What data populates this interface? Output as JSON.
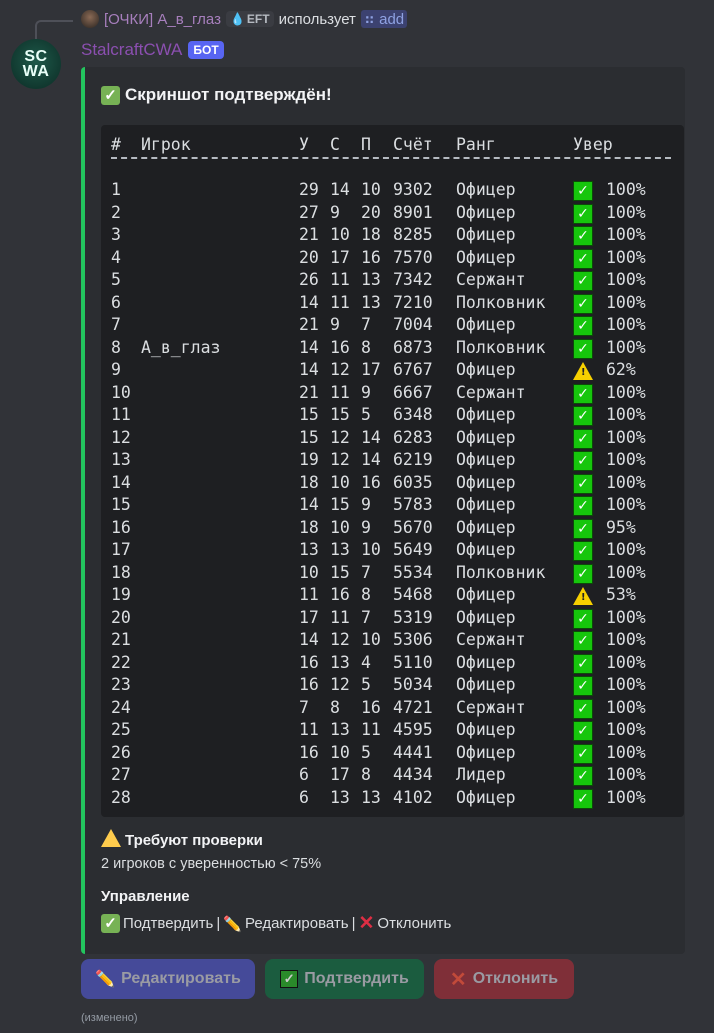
{
  "reply": {
    "user": "[ОЧКИ] А_в_глаз",
    "tag": "EFT",
    "verb": "использует",
    "command": "add"
  },
  "author": {
    "avatar_text_1": "SC",
    "avatar_text_2": "WA",
    "name": "StalcraftCWA",
    "badge": "БОТ"
  },
  "embed": {
    "title": "Скриншот подтверждён!",
    "accent": "#23c55e",
    "headers": [
      "#",
      "Игрок",
      "У",
      "С",
      "П",
      "Счёт",
      "Ранг",
      "Увер"
    ],
    "rows": [
      [
        "1",
        "",
        "29",
        "14",
        "10",
        "9302",
        "Офицер",
        "ok",
        "100%"
      ],
      [
        "2",
        "",
        "27",
        "9",
        "20",
        "8901",
        "Офицер",
        "ok",
        "100%"
      ],
      [
        "3",
        "",
        "21",
        "10",
        "18",
        "8285",
        "Офицер",
        "ok",
        "100%"
      ],
      [
        "4",
        "",
        "20",
        "17",
        "16",
        "7570",
        "Офицер",
        "ok",
        "100%"
      ],
      [
        "5",
        "",
        "26",
        "11",
        "13",
        "7342",
        "Сержант",
        "ok",
        "100%"
      ],
      [
        "6",
        "",
        "14",
        "11",
        "13",
        "7210",
        "Полковник",
        "ok",
        "100%"
      ],
      [
        "7",
        "",
        "21",
        "9",
        "7",
        "7004",
        "Офицер",
        "ok",
        "100%"
      ],
      [
        "8",
        "А_в_глаз",
        "14",
        "16",
        "8",
        "6873",
        "Полковник",
        "ok",
        "100%"
      ],
      [
        "9",
        "",
        "14",
        "12",
        "17",
        "6767",
        "Офицер",
        "warn",
        "62%"
      ],
      [
        "10",
        "",
        "21",
        "11",
        "9",
        "6667",
        "Сержант",
        "ok",
        "100%"
      ],
      [
        "11",
        "",
        "15",
        "15",
        "5",
        "6348",
        "Офицер",
        "ok",
        "100%"
      ],
      [
        "12",
        "",
        "15",
        "12",
        "14",
        "6283",
        "Офицер",
        "ok",
        "100%"
      ],
      [
        "13",
        "",
        "19",
        "12",
        "14",
        "6219",
        "Офицер",
        "ok",
        "100%"
      ],
      [
        "14",
        "",
        "18",
        "10",
        "16",
        "6035",
        "Офицер",
        "ok",
        "100%"
      ],
      [
        "15",
        "",
        "14",
        "15",
        "9",
        "5783",
        "Офицер",
        "ok",
        "100%"
      ],
      [
        "16",
        "",
        "18",
        "10",
        "9",
        "5670",
        "Офицер",
        "ok",
        "95%"
      ],
      [
        "17",
        "",
        "13",
        "13",
        "10",
        "5649",
        "Офицер",
        "ok",
        "100%"
      ],
      [
        "18",
        "",
        "10",
        "15",
        "7",
        "5534",
        "Полковник",
        "ok",
        "100%"
      ],
      [
        "19",
        "",
        "11",
        "16",
        "8",
        "5468",
        "Офицер",
        "warn",
        "53%"
      ],
      [
        "20",
        "",
        "17",
        "11",
        "7",
        "5319",
        "Офицер",
        "ok",
        "100%"
      ],
      [
        "21",
        "",
        "14",
        "12",
        "10",
        "5306",
        "Сержант",
        "ok",
        "100%"
      ],
      [
        "22",
        "",
        "16",
        "13",
        "4",
        "5110",
        "Офицер",
        "ok",
        "100%"
      ],
      [
        "23",
        "",
        "16",
        "12",
        "5",
        "5034",
        "Офицер",
        "ok",
        "100%"
      ],
      [
        "24",
        "",
        "7",
        "8",
        "16",
        "4721",
        "Сержант",
        "ok",
        "100%"
      ],
      [
        "25",
        "",
        "11",
        "13",
        "11",
        "4595",
        "Офицер",
        "ok",
        "100%"
      ],
      [
        "26",
        "",
        "16",
        "10",
        "5",
        "4441",
        "Офицер",
        "ok",
        "100%"
      ],
      [
        "27",
        "",
        "6",
        "17",
        "8",
        "4434",
        "Лидер",
        "ok",
        "100%"
      ],
      [
        "28",
        "",
        "6",
        "13",
        "13",
        "4102",
        "Офицер",
        "ok",
        "100%"
      ]
    ],
    "review_title": "Требуют проверки",
    "review_text": "2 игроков с уверенностью < 75%",
    "manage_title": "Управление",
    "manage": {
      "confirm": "Подтвердить",
      "sep": "|",
      "edit": "Редактировать",
      "reject": "Отклонить"
    }
  },
  "buttons": {
    "edit": "Редактировать",
    "confirm": "Подтвердить",
    "reject": "Отклонить"
  },
  "edited": "(изменено)"
}
